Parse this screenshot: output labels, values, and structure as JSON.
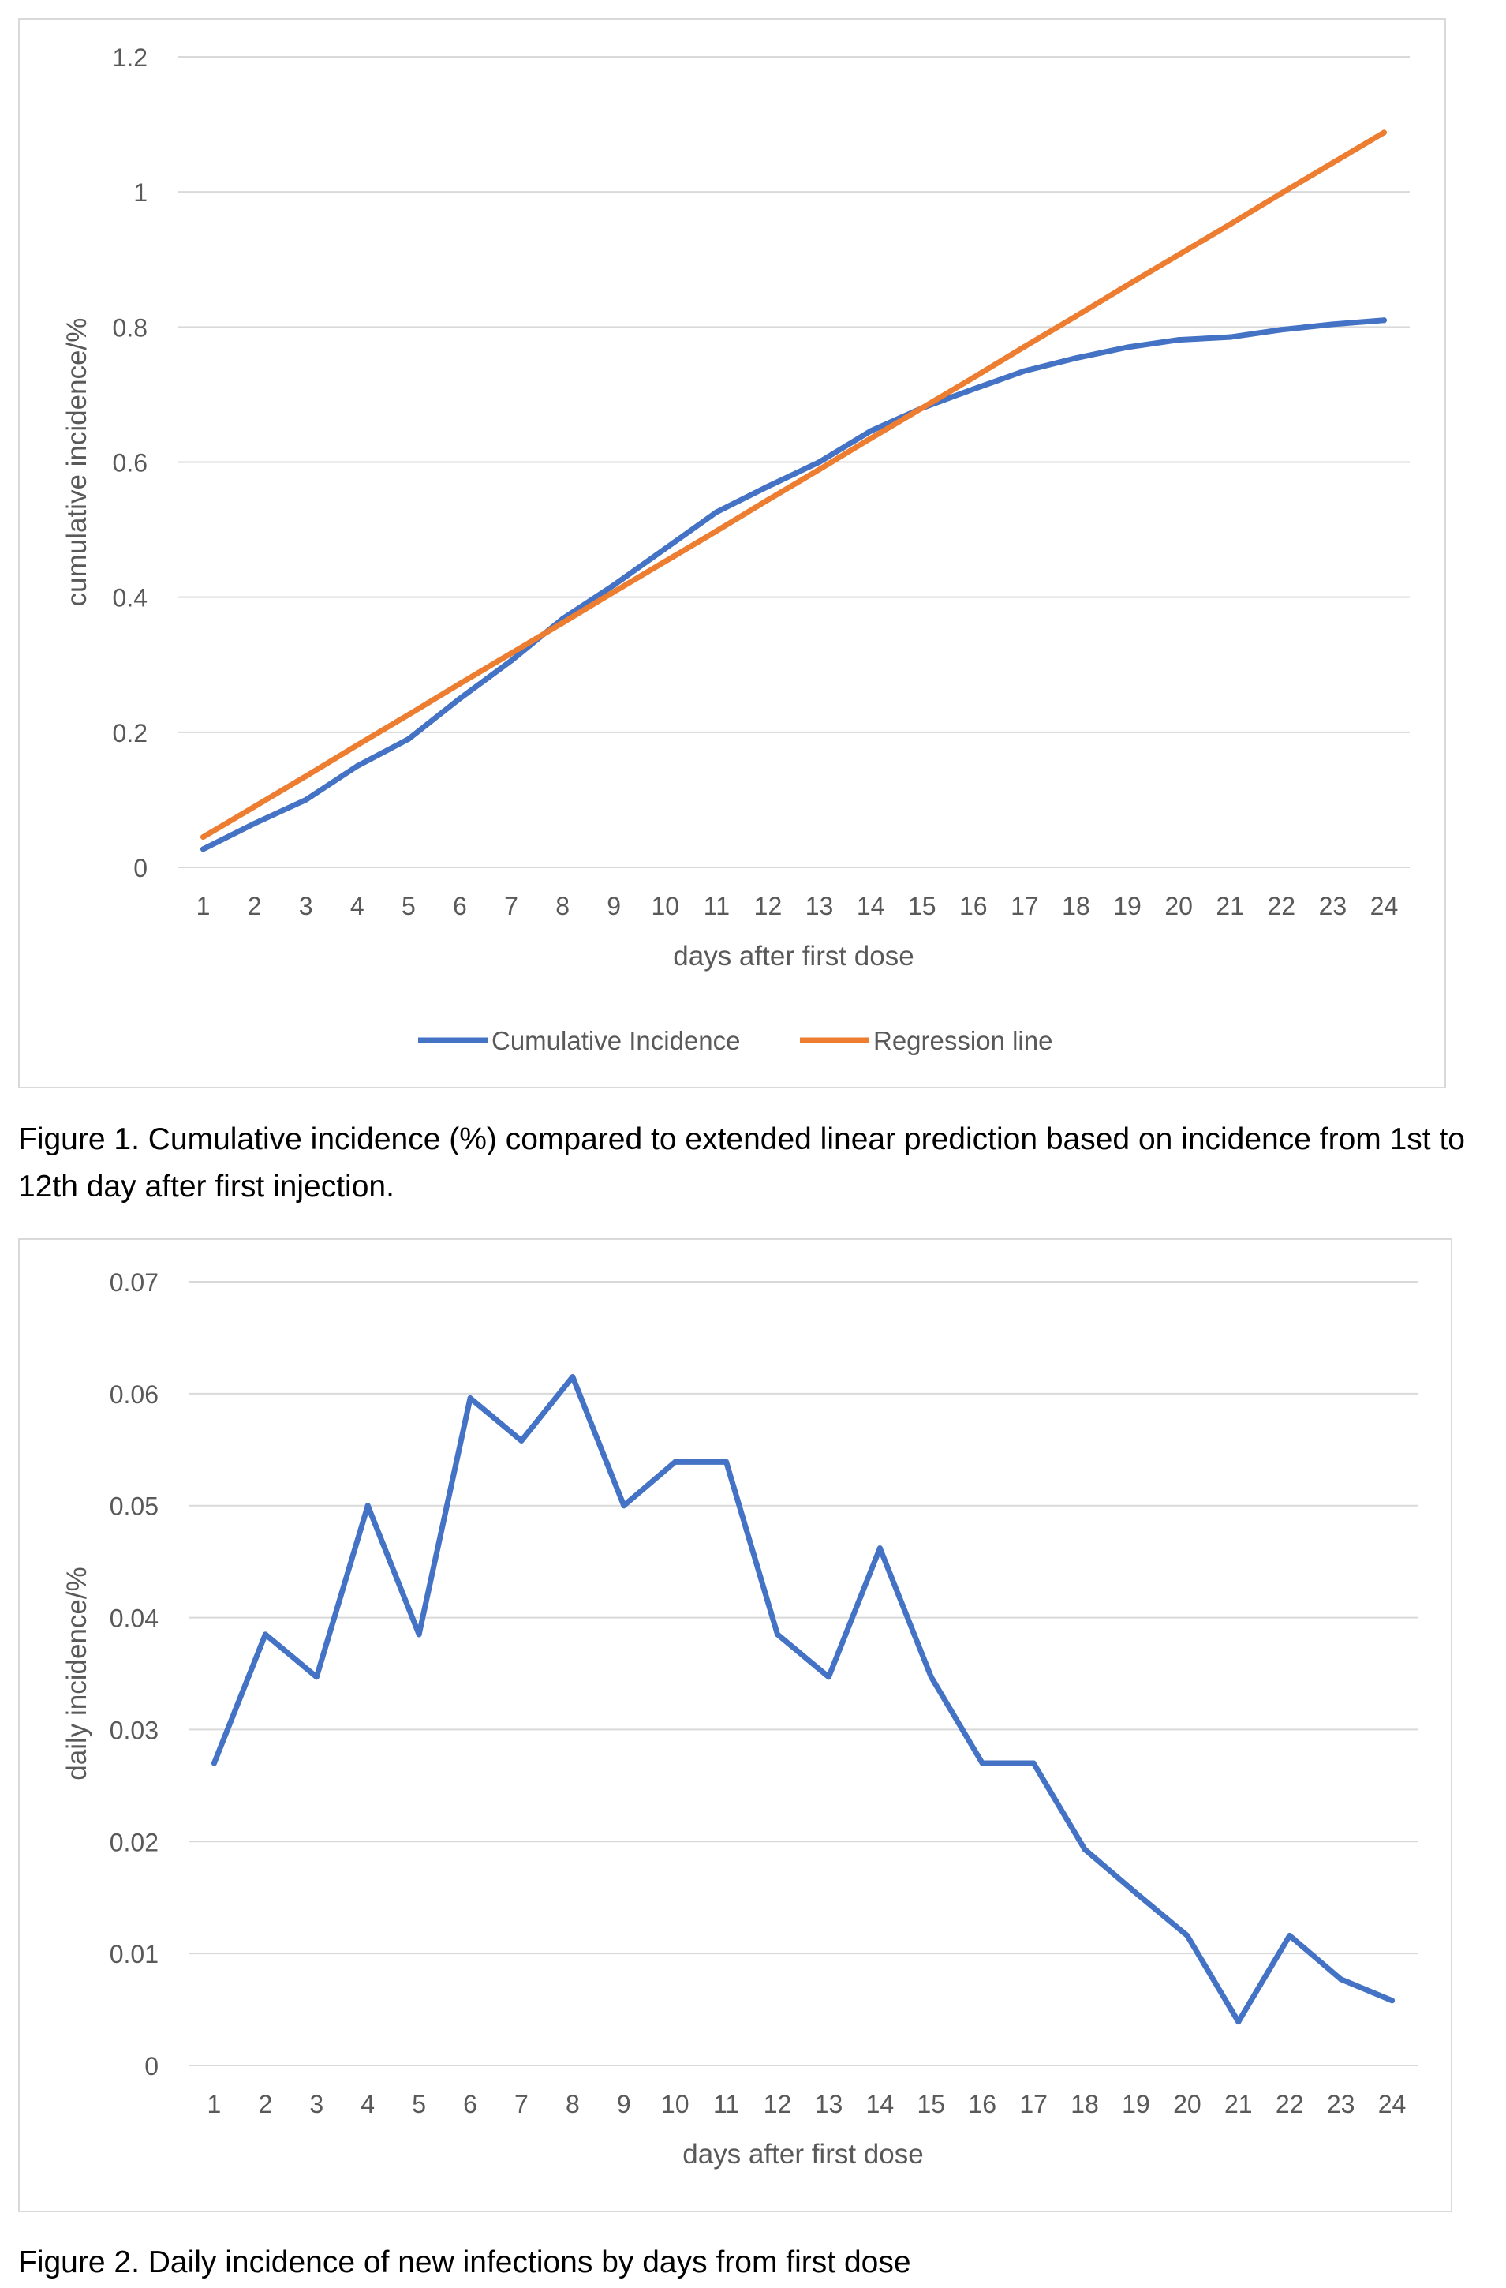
{
  "figures": [
    {
      "caption": "Figure 1. Cumulative incidence (%) compared to extended linear prediction based on incidence from 1st to 12th day after first injection."
    },
    {
      "caption": "Figure 2. Daily incidence of new infections by days from first dose"
    }
  ],
  "colors": {
    "series_blue": "#4472c4",
    "series_orange": "#ed7d31",
    "grid": "#d9d9d9",
    "tick_text": "#595959"
  },
  "chart_data": [
    {
      "type": "line",
      "title": "",
      "xlabel": "days after first dose",
      "ylabel": "cumulative incidence/%",
      "x": [
        1,
        2,
        3,
        4,
        5,
        6,
        7,
        8,
        9,
        10,
        11,
        12,
        13,
        14,
        15,
        16,
        17,
        18,
        19,
        20,
        21,
        22,
        23,
        24
      ],
      "yticks": [
        "0",
        "0.2",
        "0.4",
        "0.6",
        "0.8",
        "1",
        "1.2"
      ],
      "ylim": [
        0,
        1.2
      ],
      "grid": true,
      "legend": "bottom",
      "series": [
        {
          "name": "Cumulative Incidence",
          "color": "#4472c4",
          "values": [
            0.027,
            0.065,
            0.1,
            0.15,
            0.19,
            0.25,
            0.306,
            0.368,
            0.418,
            0.472,
            0.526,
            0.564,
            0.6,
            0.646,
            0.68,
            0.708,
            0.735,
            0.754,
            0.77,
            0.781,
            0.785,
            0.796,
            0.804,
            0.81
          ]
        },
        {
          "name": "Regression line",
          "color": "#ed7d31",
          "values": [
            0.045,
            0.09,
            0.135,
            0.181,
            0.226,
            0.272,
            0.317,
            0.362,
            0.408,
            0.453,
            0.498,
            0.544,
            0.589,
            0.635,
            0.68,
            0.725,
            0.771,
            0.816,
            0.862,
            0.907,
            0.952,
            0.998,
            1.043,
            1.088
          ]
        }
      ]
    },
    {
      "type": "line",
      "title": "",
      "xlabel": "days after first dose",
      "ylabel": "daily incidence/%",
      "x": [
        1,
        2,
        3,
        4,
        5,
        6,
        7,
        8,
        9,
        10,
        11,
        12,
        13,
        14,
        15,
        16,
        17,
        18,
        19,
        20,
        21,
        22,
        23,
        24
      ],
      "yticks": [
        "0",
        "0.01",
        "0.02",
        "0.03",
        "0.04",
        "0.05",
        "0.06",
        "0.07"
      ],
      "ylim": [
        0,
        0.07
      ],
      "grid": true,
      "legend": "none",
      "series": [
        {
          "color": "#4472c4",
          "values": [
            0.027,
            0.0385,
            0.0347,
            0.05,
            0.0385,
            0.0596,
            0.0558,
            0.0615,
            0.05,
            0.0539,
            0.0539,
            0.0385,
            0.0347,
            0.0462,
            0.0347,
            0.027,
            0.027,
            0.0193,
            0.0154,
            0.0116,
            0.0039,
            0.0116,
            0.0077,
            0.0058
          ]
        }
      ]
    }
  ]
}
